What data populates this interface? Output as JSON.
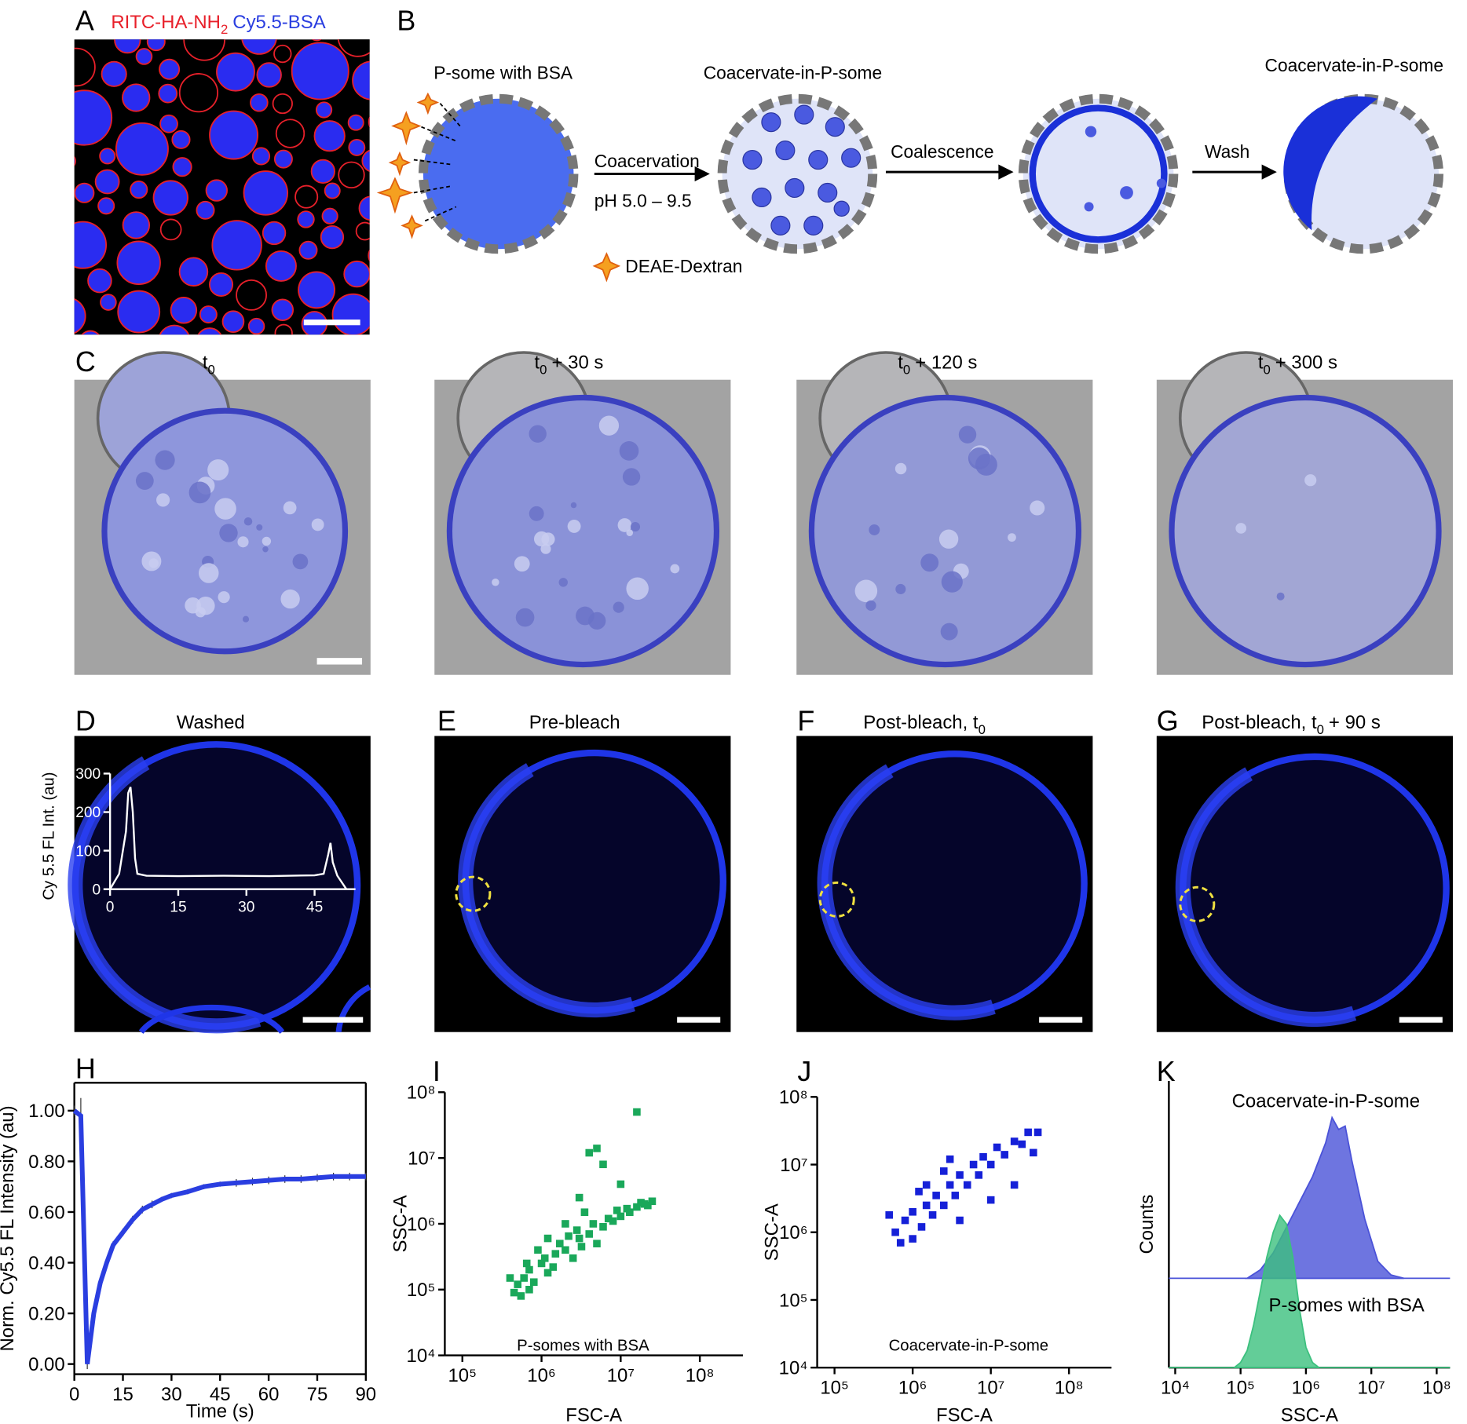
{
  "panel_labels": [
    "A",
    "B",
    "C",
    "D",
    "E",
    "F",
    "G",
    "H",
    "I",
    "J",
    "K"
  ],
  "panel_a": {
    "legend_red": [
      "RITC-HA-NH",
      "2"
    ],
    "legend_blue": "Cy5.5-BSA"
  },
  "panel_b": {
    "step1": "P-some with BSA",
    "coacervation": "Coacervation",
    "ph": "pH 5.0 – 9.5",
    "step2": "Coacervate-in-P-some",
    "coalescence": "Coalescence",
    "wash": "Wash",
    "step4": "Coacervate-in-P-some",
    "dextran": "DEAE-Dextran"
  },
  "panel_c": {
    "titles": [
      [
        "t",
        "0"
      ],
      [
        "t",
        "0",
        "+ 30 s"
      ],
      [
        "t",
        "0",
        "+ 120 s"
      ],
      [
        "t",
        "0",
        "+ 300 s"
      ]
    ]
  },
  "panels_d_g": {
    "titles": [
      [
        "Washed"
      ],
      [
        "Pre-bleach"
      ],
      [
        "Post-bleach, t",
        "0"
      ],
      [
        "Post-bleach, t",
        "0",
        "+ 90 s"
      ]
    ]
  },
  "chart_data": [
    {
      "type": "line",
      "ylabel": "Cy 5.5 FL Int. (au)",
      "color": "#ffffff",
      "axis_color": "#ffffff",
      "x": [
        0,
        2,
        3.5,
        4,
        4.5,
        5,
        5.5,
        6,
        8,
        15,
        25,
        35,
        45,
        47,
        48,
        48.5,
        49,
        50,
        52
      ],
      "values": [
        0,
        40,
        150,
        250,
        265,
        200,
        80,
        40,
        35,
        34,
        35,
        34,
        36,
        40,
        90,
        120,
        70,
        35,
        0
      ],
      "xlim": [
        0,
        54
      ],
      "ylim": [
        0,
        300
      ],
      "xticks": [
        0,
        15,
        30,
        45
      ],
      "yticks": [
        0,
        100,
        200,
        300
      ]
    },
    {
      "type": "line",
      "xlabel": "Time (s)",
      "ylabel": "Norm. Cy5.5 FL Intensity (au)",
      "color": "#2a3ee0",
      "axis_color": "#000000",
      "x": [
        0,
        2,
        4,
        6,
        8,
        10,
        12,
        15,
        18,
        21,
        24,
        27,
        30,
        35,
        40,
        45,
        50,
        55,
        60,
        65,
        70,
        75,
        80,
        85,
        90
      ],
      "values": [
        1.0,
        0.98,
        0.0,
        0.2,
        0.32,
        0.4,
        0.47,
        0.52,
        0.57,
        0.61,
        0.63,
        0.65,
        0.665,
        0.68,
        0.7,
        0.71,
        0.715,
        0.72,
        0.725,
        0.73,
        0.73,
        0.735,
        0.74,
        0.74,
        0.74
      ],
      "errors": [
        0.02,
        0.07,
        0.02,
        0.02,
        0.02,
        0.02,
        0.015,
        0.015,
        0.015,
        0.015,
        0.015,
        0.01,
        0.01,
        0.01,
        0.01,
        0.01,
        0.015,
        0.015,
        0.015,
        0.015,
        0.015,
        0.015,
        0.015,
        0.015,
        0.015
      ],
      "xlim": [
        0,
        90
      ],
      "ylim": [
        -0.04,
        1.11
      ],
      "xticks": [
        0,
        15,
        30,
        45,
        60,
        75,
        90
      ],
      "yticks": [
        {
          "value": 0,
          "label": "0.00"
        },
        {
          "value": 0.2,
          "label": "0.20"
        },
        {
          "value": 0.4,
          "label": "0.40"
        },
        {
          "value": 0.6,
          "label": "0.60"
        },
        {
          "value": 0.8,
          "label": "0.80"
        },
        {
          "value": 1,
          "label": "1.00"
        }
      ]
    },
    {
      "type": "scatter",
      "xlabel": "FSC-A",
      "ylabel": "SSC-A",
      "annotation": "P-somes with BSA",
      "color": "#1aa85a",
      "axis_color": "#000000",
      "xlog": true,
      "ylog": true,
      "x": [
        500000,
        600000,
        550000,
        700000,
        800000,
        1000000,
        1200000,
        1500000,
        2000000,
        2500000,
        3000000,
        4000000,
        5000000,
        6000000,
        8000000,
        10000000,
        13000000,
        16000000,
        20000000,
        25000000,
        1200000,
        2000000,
        3000000,
        4000000,
        5000000,
        6000000,
        16000000,
        10000000,
        700000,
        400000,
        900000,
        3500000,
        450000,
        650000,
        1100000,
        1700000,
        2200000,
        2800000,
        4500000,
        7000000,
        9000000,
        12000000,
        18000000,
        22000000,
        1400000,
        3200000
      ],
      "values": [
        120000,
        150000,
        80000,
        200000,
        130000,
        250000,
        180000,
        350000,
        400000,
        300000,
        600000,
        700000,
        500000,
        900000,
        1100000,
        1300000,
        1500000,
        1800000,
        2000000,
        2200000,
        600000,
        1000000,
        2500000,
        12000000,
        14000000,
        8000000,
        50000000,
        4000000,
        100000,
        150000,
        400000,
        1500000,
        90000,
        250000,
        300000,
        500000,
        650000,
        800000,
        1000000,
        1200000,
        1600000,
        1700000,
        2100000,
        1900000,
        220000,
        450000
      ],
      "xlim": [
        60000,
        350000000
      ],
      "ylim": [
        10000,
        100000000
      ],
      "xticks": [
        {
          "value": 100000,
          "label": "10⁵"
        },
        {
          "value": 1000000,
          "label": "10⁶"
        },
        {
          "value": 10000000,
          "label": "10⁷"
        },
        {
          "value": 100000000,
          "label": "10⁸"
        }
      ],
      "yticks": [
        {
          "value": 10000,
          "label": "10⁴"
        },
        {
          "value": 100000,
          "label": "10⁵"
        },
        {
          "value": 1000000,
          "label": "10⁶"
        },
        {
          "value": 10000000,
          "label": "10⁷"
        },
        {
          "value": 100000000,
          "label": "10⁸"
        }
      ]
    },
    {
      "type": "scatter",
      "xlabel": "FSC-A",
      "ylabel": "SSC-A",
      "annotation": "Coacervate-in-P-some",
      "color": "#1520d8",
      "axis_color": "#000000",
      "xlog": true,
      "ylog": true,
      "x": [
        600000,
        800000,
        1000000,
        1000000,
        1300000,
        1500000,
        1800000,
        2000000,
        2500000,
        3000000,
        3500000,
        4000000,
        5000000,
        6000000,
        7000000,
        8000000,
        10000000,
        12000000,
        15000000,
        20000000,
        25000000,
        30000000,
        40000000,
        35000000,
        20000000,
        10000000,
        1500000,
        2500000,
        500000,
        700000,
        4000000,
        1200000,
        3000000
      ],
      "values": [
        1000000,
        1500000,
        800000,
        2000000,
        1200000,
        2500000,
        1800000,
        3500000,
        2500000,
        5000000,
        3500000,
        7000000,
        5000000,
        10000000,
        7000000,
        13000000,
        10000000,
        18000000,
        14000000,
        22000000,
        20000000,
        30000000,
        30000000,
        15000000,
        5000000,
        3000000,
        5000000,
        8000000,
        1800000,
        700000,
        1500000,
        4000000,
        12000000
      ],
      "xlim": [
        60000,
        350000000
      ],
      "ylim": [
        10000,
        100000000
      ],
      "xticks": [
        {
          "value": 100000,
          "label": "10⁵"
        },
        {
          "value": 1000000,
          "label": "10⁶"
        },
        {
          "value": 10000000,
          "label": "10⁷"
        },
        {
          "value": 100000000,
          "label": "10⁸"
        }
      ],
      "yticks": [
        {
          "value": 10000,
          "label": "10⁴"
        },
        {
          "value": 100000,
          "label": "10⁵"
        },
        {
          "value": 1000000,
          "label": "10⁶"
        },
        {
          "value": 10000000,
          "label": "10⁷"
        },
        {
          "value": 100000000,
          "label": "10⁸"
        }
      ]
    },
    {
      "type": "area",
      "xlabel": "SSC-A",
      "ylabel": "Counts",
      "axis_color": "#000000",
      "xlog": true,
      "series": [
        {
          "name": "Coacervate-in-P-some",
          "color": "#4a52d8",
          "x": [
            126000,
            200000,
            316000,
            501000,
            794000,
            1260000,
            2000000,
            2510000,
            3160000,
            3980000,
            5010000,
            7940000,
            12600000,
            20000000,
            31600000
          ],
          "values": [
            0,
            5,
            15,
            30,
            45,
            60,
            80,
            95,
            88,
            90,
            70,
            35,
            10,
            2,
            0
          ]
        },
        {
          "name": "P-somes with BSA",
          "color": "#3cc07e",
          "x": [
            80000,
            100000,
            126000,
            158000,
            200000,
            251000,
            316000,
            398000,
            501000,
            631000,
            794000,
            1000000,
            1260000,
            1580000
          ],
          "values": [
            0,
            3,
            10,
            25,
            45,
            65,
            80,
            90,
            85,
            65,
            35,
            12,
            3,
            0
          ]
        }
      ],
      "xlim": [
        8000,
        160000000
      ],
      "ylim": [
        0,
        100
      ],
      "xticks": [
        {
          "value": 10000,
          "label": "10⁴"
        },
        {
          "value": 100000,
          "label": "10⁵"
        },
        {
          "value": 1000000,
          "label": "10⁶"
        },
        {
          "value": 10000000,
          "label": "10⁷"
        },
        {
          "value": 100000000,
          "label": "10⁸"
        }
      ]
    }
  ]
}
